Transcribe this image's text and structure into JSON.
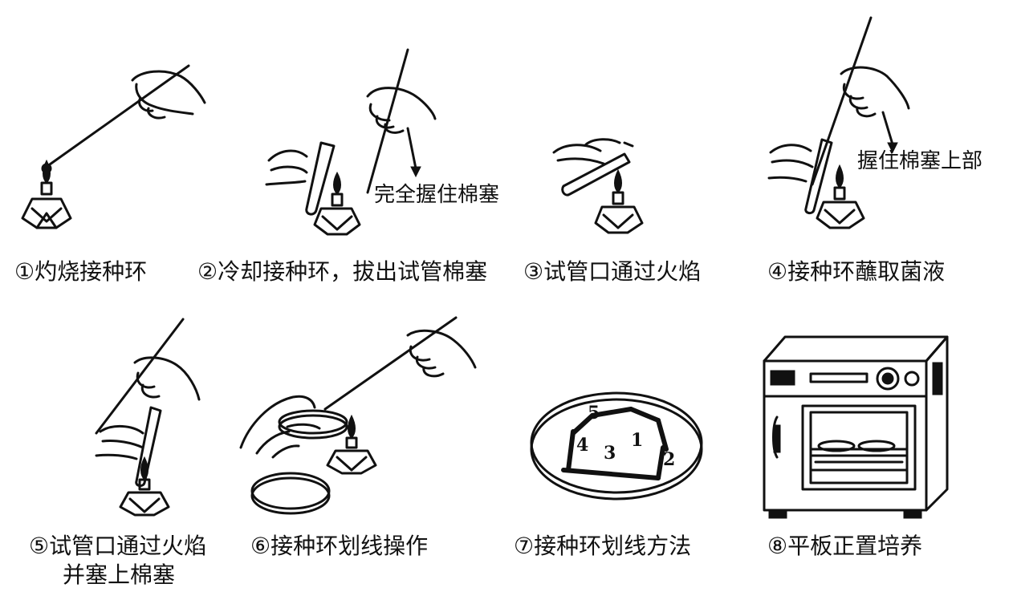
{
  "steps": [
    {
      "label": "①灼烧接种环"
    },
    {
      "label": "②冷却接种环，拔出试管棉塞",
      "note": "完全握住棉塞"
    },
    {
      "label": "③试管口通过火焰"
    },
    {
      "label": "④接种环蘸取菌液",
      "note": "握住棉塞上部"
    },
    {
      "label": "⑤试管口通过火焰",
      "label_line2": "并塞上棉塞"
    },
    {
      "label": "⑥接种环划线操作"
    },
    {
      "label": "⑦接种环划线方法",
      "streak_numbers": [
        "1",
        "2",
        "3",
        "4",
        "5"
      ]
    },
    {
      "label": "⑧平板正置培养"
    }
  ]
}
